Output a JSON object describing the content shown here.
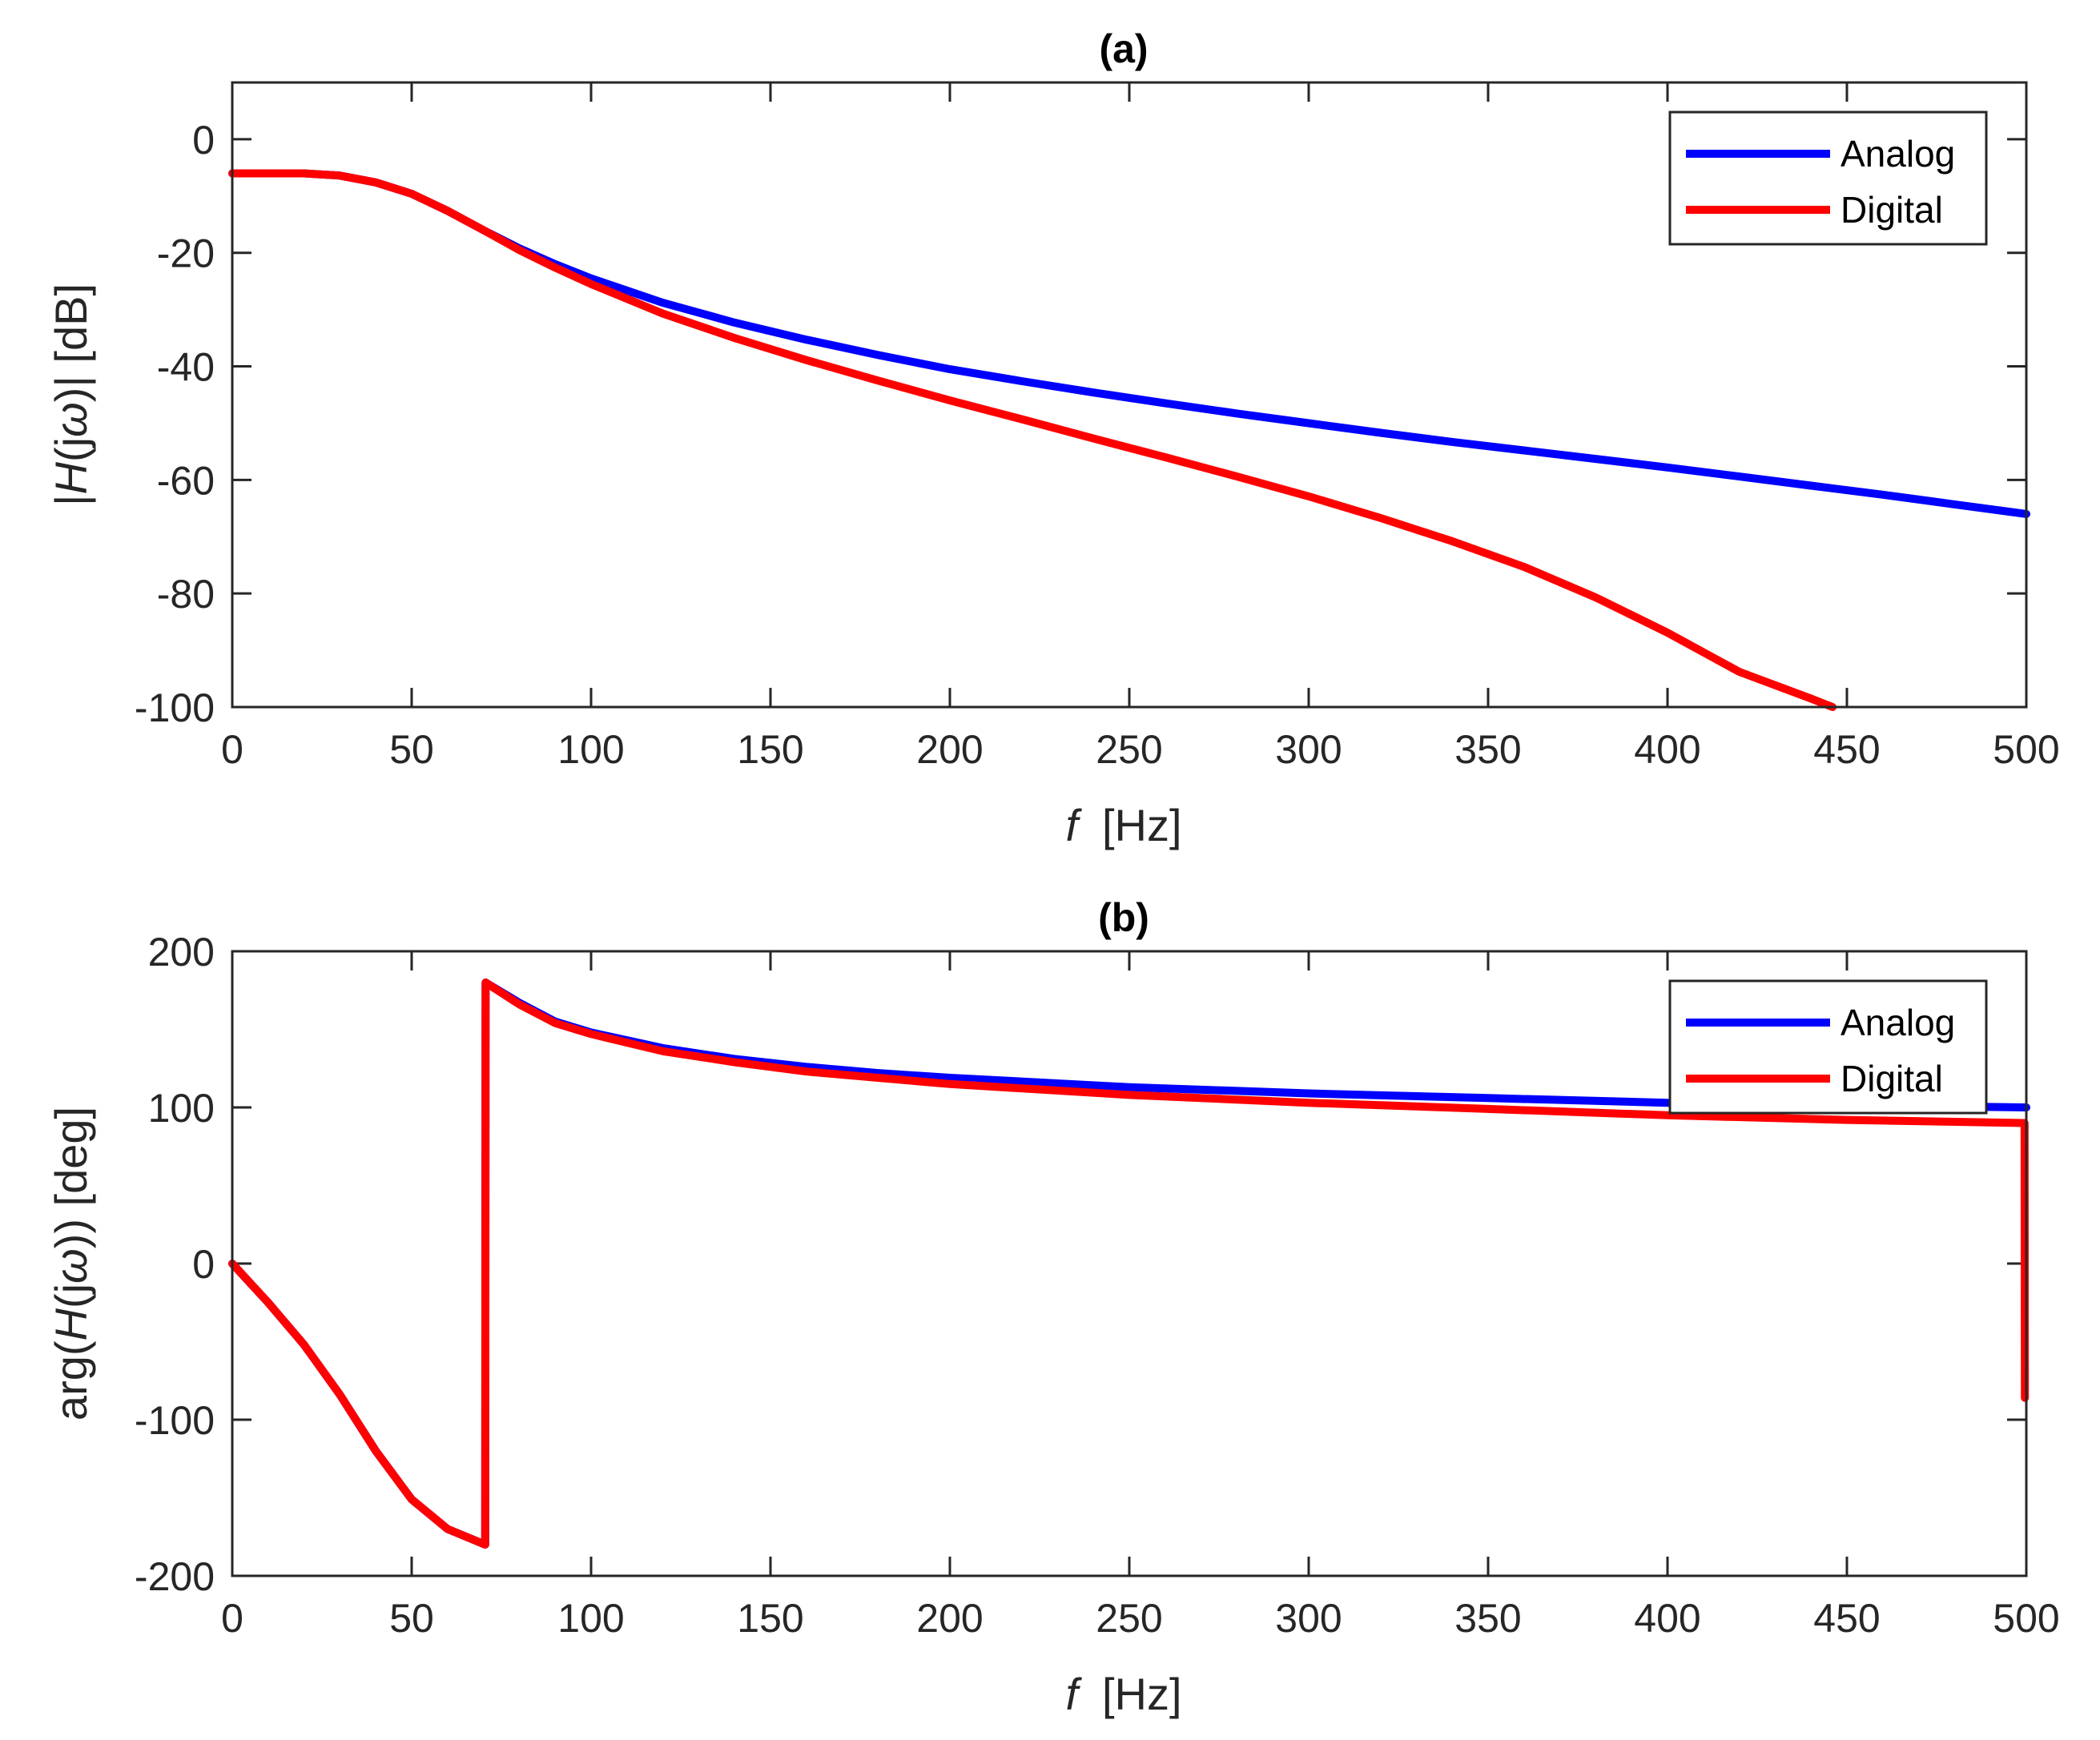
{
  "colors": {
    "analog": "#0000ff",
    "digital": "#ff0000",
    "axis": "#262626",
    "background": "#ffffff"
  },
  "chart_data": [
    {
      "type": "line",
      "title": "(a)",
      "xlabel_italic": "f",
      "xlabel_rest": "[Hz]",
      "ylabel_pre": "|",
      "ylabel_italic1": "H",
      "ylabel_mid": "(j",
      "ylabel_italic2": "ω",
      "ylabel_post": ")|  [dB]",
      "xlim": [
        0,
        500
      ],
      "ylim": [
        -100,
        10
      ],
      "xticks": [
        0,
        50,
        100,
        150,
        200,
        250,
        300,
        350,
        400,
        450,
        500
      ],
      "yticks": [
        -100,
        -80,
        -60,
        -40,
        -20,
        0
      ],
      "xtick_labels": [
        "0",
        "50",
        "100",
        "150",
        "200",
        "250",
        "300",
        "350",
        "400",
        "450",
        "500"
      ],
      "ytick_labels": [
        "-100",
        "-80",
        "-60",
        "-40",
        "-20",
        "0"
      ],
      "legend_location": "top-right",
      "grid": false,
      "series": [
        {
          "name": "Analog",
          "color": "#0000ff",
          "x": [
            0,
            10,
            20,
            30,
            40,
            50,
            60,
            70,
            80,
            90,
            100,
            120,
            140,
            160,
            180,
            200,
            220,
            240,
            260,
            280,
            300,
            320,
            340,
            360,
            380,
            400,
            420,
            440,
            460,
            480,
            500
          ],
          "y": [
            -6,
            -6,
            -6,
            -6.4,
            -7.6,
            -9.6,
            -12.6,
            -16,
            -19.2,
            -22,
            -24.5,
            -28.8,
            -32.3,
            -35.3,
            -38,
            -40.5,
            -42.6,
            -44.6,
            -46.5,
            -48.3,
            -50,
            -51.7,
            -53.3,
            -54.8,
            -56.3,
            -57.8,
            -59.4,
            -61,
            -62.6,
            -64.3,
            -66
          ]
        },
        {
          "name": "Digital",
          "color": "#ff0000",
          "x": [
            0,
            10,
            20,
            30,
            40,
            50,
            60,
            70,
            80,
            90,
            100,
            120,
            140,
            160,
            180,
            200,
            220,
            240,
            260,
            280,
            300,
            320,
            340,
            360,
            380,
            400,
            420,
            440,
            446
          ],
          "y": [
            -6,
            -6,
            -6,
            -6.4,
            -7.6,
            -9.6,
            -12.6,
            -16,
            -19.5,
            -22.6,
            -25.5,
            -30.7,
            -35,
            -38.9,
            -42.5,
            -46,
            -49.3,
            -52.7,
            -56,
            -59.4,
            -62.9,
            -66.7,
            -70.8,
            -75.3,
            -80.7,
            -86.9,
            -93.8,
            -98.5,
            -100
          ]
        }
      ]
    },
    {
      "type": "line",
      "title": "(b)",
      "xlabel_italic": "f",
      "xlabel_rest": "[Hz]",
      "ylabel_pre": "arg(",
      "ylabel_italic1": "H",
      "ylabel_mid": "(j",
      "ylabel_italic2": "ω",
      "ylabel_post": "))  [deg]",
      "xlim": [
        0,
        500
      ],
      "ylim": [
        -200,
        200
      ],
      "xticks": [
        0,
        50,
        100,
        150,
        200,
        250,
        300,
        350,
        400,
        450,
        500
      ],
      "yticks": [
        -200,
        -100,
        0,
        100,
        200
      ],
      "xtick_labels": [
        "0",
        "50",
        "100",
        "150",
        "200",
        "250",
        "300",
        "350",
        "400",
        "450",
        "500"
      ],
      "ytick_labels": [
        "-200",
        "-100",
        "0",
        "100",
        "200"
      ],
      "legend_location": "top-right",
      "grid": false,
      "series": [
        {
          "name": "Analog",
          "color": "#0000ff",
          "x": [
            0,
            10,
            20,
            30,
            40,
            50,
            60,
            70.5,
            70.6,
            80,
            90,
            100,
            120,
            140,
            160,
            180,
            200,
            250,
            300,
            350,
            400,
            450,
            500
          ],
          "y": [
            0,
            -25,
            -52,
            -84,
            -120,
            -151,
            -170,
            -180,
            180,
            167,
            155,
            148,
            138,
            131,
            126,
            122,
            119,
            113,
            109,
            106,
            103,
            101.5,
            100
          ]
        },
        {
          "name": "Digital",
          "color": "#ff0000",
          "x": [
            0,
            10,
            20,
            30,
            40,
            50,
            60,
            70.5,
            70.6,
            80,
            90,
            100,
            120,
            140,
            160,
            180,
            200,
            250,
            300,
            350,
            400,
            450,
            499.5,
            499.6
          ],
          "y": [
            0,
            -25,
            -52,
            -84,
            -120,
            -151,
            -170,
            -180,
            180,
            166,
            154,
            147,
            136,
            129,
            123,
            119,
            115,
            108,
            103,
            99,
            95,
            92,
            90,
            -86
          ]
        }
      ]
    }
  ]
}
